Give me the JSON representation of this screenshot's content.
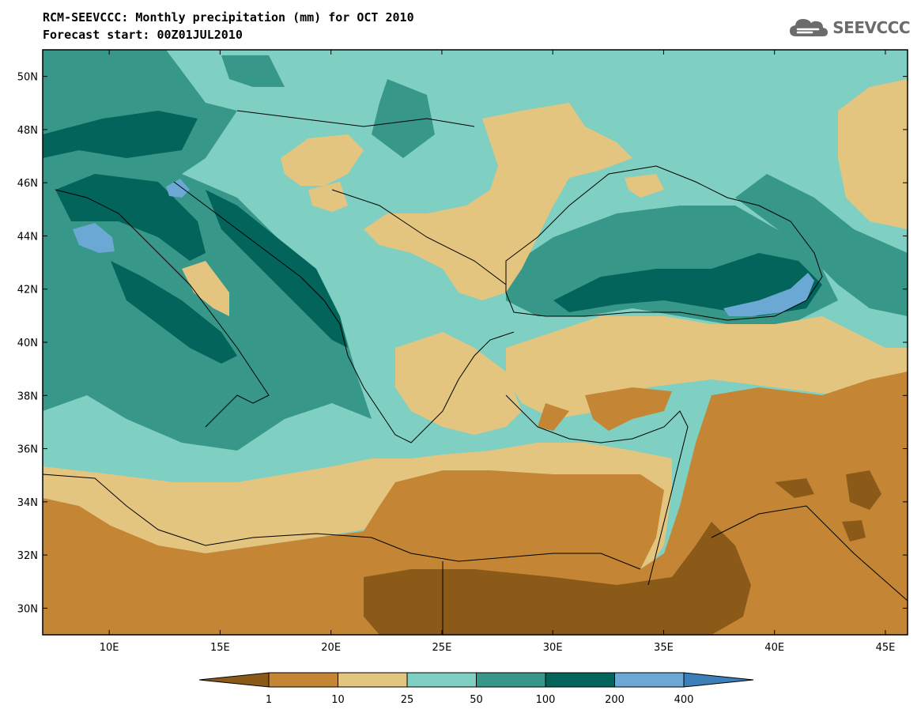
{
  "header": {
    "title_line_1": "RCM-SEEVCCC: Monthly precipitation (mm) for OCT 2010",
    "title_line_2": "Forecast start: 00Z01JUL2010"
  },
  "logo": {
    "text": "SEEVCCC",
    "icon": "cloud-icon",
    "color": "#6b6b6b"
  },
  "map": {
    "lon_range": [
      7,
      46
    ],
    "lat_range": [
      29,
      51
    ],
    "lat_ticks": [
      "30N",
      "32N",
      "34N",
      "36N",
      "38N",
      "40N",
      "42N",
      "44N",
      "46N",
      "48N",
      "50N"
    ],
    "lon_ticks": [
      "10E",
      "15E",
      "20E",
      "25E",
      "30E",
      "35E",
      "40E",
      "45E"
    ],
    "lat_tick_values": [
      30,
      32,
      34,
      36,
      38,
      40,
      42,
      44,
      46,
      48,
      50
    ],
    "lon_tick_values": [
      10,
      15,
      20,
      25,
      30,
      35,
      40,
      45
    ]
  },
  "colorbar": {
    "levels": [
      "1",
      "10",
      "25",
      "50",
      "100",
      "200",
      "400"
    ],
    "colors": [
      "#8b5a19",
      "#c48634",
      "#e3c580",
      "#7fcfc2",
      "#379789",
      "#02645a",
      "#6ba8d4",
      "#3d7fb8"
    ]
  }
}
